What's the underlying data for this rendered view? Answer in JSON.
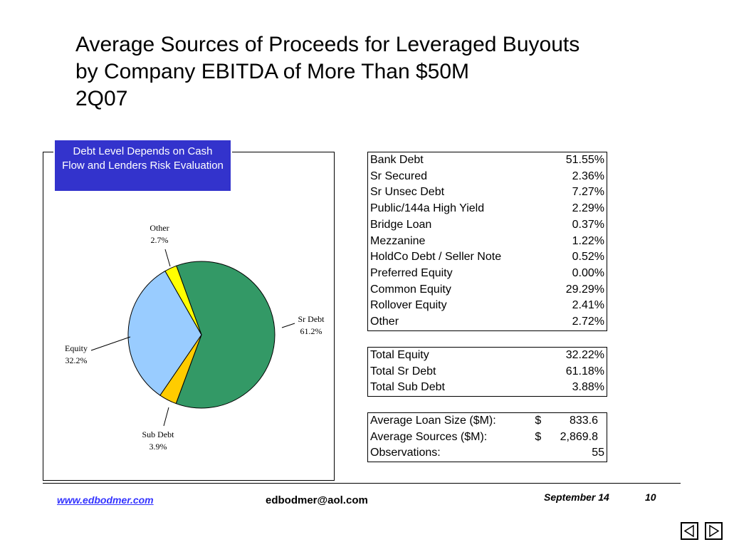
{
  "title": {
    "line1": "Average Sources of Proceeds for Leveraged Buyouts",
    "line2": "by Company EBITDA of More Than $50M",
    "line3": "2Q07"
  },
  "callout": "Debt Level Depends on  Cash Flow and Lenders Risk Evaluation",
  "chart_data": {
    "type": "pie",
    "slices": [
      {
        "name": "Sr Debt",
        "value": 61.2,
        "label": "61.2%",
        "color": "#339966"
      },
      {
        "name": "Sub Debt",
        "value": 3.9,
        "label": "3.9%",
        "color": "#ffcc00"
      },
      {
        "name": "Equity",
        "value": 32.2,
        "label": "32.2%",
        "color": "#99ccff"
      },
      {
        "name": "Other",
        "value": 2.7,
        "label": "2.7%",
        "color": "#ffff00"
      }
    ]
  },
  "sources_table": [
    {
      "label": "Bank Debt",
      "value": "51.55%"
    },
    {
      "label": "Sr Secured",
      "value": "2.36%"
    },
    {
      "label": "Sr Unsec Debt",
      "value": "7.27%"
    },
    {
      "label": "Public/144a High Yield",
      "value": "2.29%"
    },
    {
      "label": "Bridge Loan",
      "value": "0.37%"
    },
    {
      "label": "Mezzanine",
      "value": "1.22%"
    },
    {
      "label": "HoldCo Debt / Seller Note",
      "value": "0.52%"
    },
    {
      "label": "Preferred Equity",
      "value": "0.00%"
    },
    {
      "label": "Common Equity",
      "value": "29.29%"
    },
    {
      "label": "Rollover Equity",
      "value": "2.41%"
    },
    {
      "label": "Other",
      "value": "2.72%"
    }
  ],
  "totals_table": [
    {
      "label": "Total Equity",
      "value": "32.22%"
    },
    {
      "label": "Total Sr Debt",
      "value": "61.18%"
    },
    {
      "label": "Total Sub Debt",
      "value": "3.88%"
    }
  ],
  "stats_table": [
    {
      "label": "Average Loan Size ($M):",
      "currency": "$",
      "value": "833.6"
    },
    {
      "label": "Average Sources ($M):",
      "currency": "$",
      "value": "2,869.8"
    },
    {
      "label": "Observations:",
      "currency": "",
      "value": "55"
    }
  ],
  "footer": {
    "website": "www.edbodmer.com",
    "email": "edbodmer@aol.com",
    "date": "September 14",
    "page": "10"
  },
  "nav": {
    "prev_icon": "triangle-left-icon",
    "next_icon": "triangle-right-icon"
  }
}
